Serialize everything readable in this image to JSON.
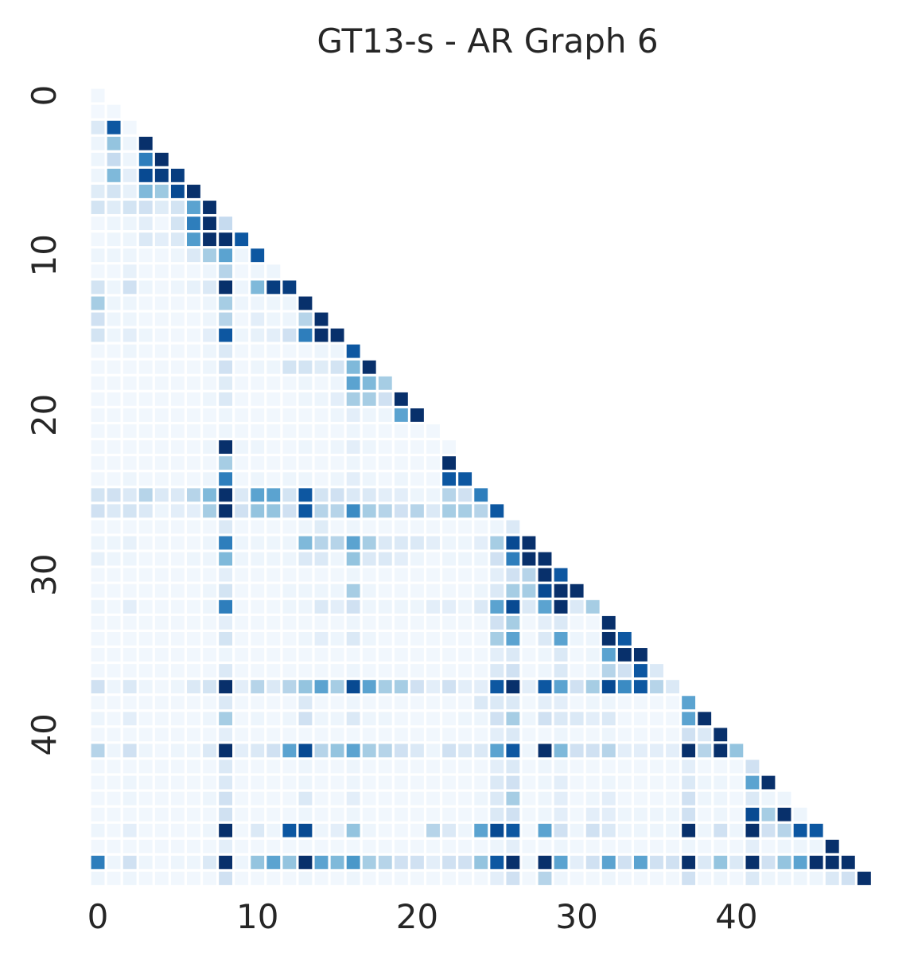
{
  "chart_data": {
    "type": "heatmap",
    "title": "GT13-s - AR Graph 6",
    "xlabel": "",
    "ylabel": "",
    "n": 49,
    "mask": "lower-triangle",
    "colormap": "Blues",
    "grid": false,
    "xticks": [
      0,
      10,
      20,
      30,
      40
    ],
    "yticks": [
      0,
      10,
      20,
      30,
      40
    ],
    "xtick_labels": [
      "0",
      "10",
      "20",
      "30",
      "40"
    ],
    "ytick_labels": [
      "0",
      "10",
      "20",
      "30",
      "40"
    ],
    "color_stops": [
      "#f7fbff",
      "#deebf7",
      "#c6dbef",
      "#9ecae1",
      "#6baed6",
      "#4292c6",
      "#2171b5",
      "#08519c",
      "#08306b"
    ],
    "rows": [
      [
        0.03
      ],
      [
        0.02,
        0.03
      ],
      [
        0.14,
        0.85,
        0.03
      ],
      [
        0.05,
        0.4,
        0.05,
        1.0
      ],
      [
        0.05,
        0.25,
        0.05,
        0.7,
        1.0
      ],
      [
        0.05,
        0.45,
        0.1,
        0.9,
        0.95,
        0.95
      ],
      [
        0.12,
        0.18,
        0.08,
        0.45,
        0.38,
        0.9,
        1.0
      ],
      [
        0.18,
        0.12,
        0.18,
        0.2,
        0.12,
        0.18,
        0.55,
        1.0
      ],
      [
        0.03,
        0.05,
        0.05,
        0.1,
        0.03,
        0.18,
        0.7,
        1.0,
        0.25
      ],
      [
        0.03,
        0.05,
        0.05,
        0.14,
        0.1,
        0.14,
        0.58,
        1.0,
        1.0,
        0.85
      ],
      [
        0.05,
        0.05,
        0.05,
        0.03,
        0.03,
        0.05,
        0.14,
        0.35,
        0.55,
        0.05,
        0.85
      ],
      [
        0.03,
        0.03,
        0.08,
        0.03,
        0.03,
        0.03,
        0.03,
        0.05,
        0.3,
        0.03,
        0.05,
        0.05
      ],
      [
        0.18,
        0.05,
        0.2,
        0.05,
        0.03,
        0.05,
        0.08,
        0.14,
        1.0,
        0.05,
        0.45,
        0.95,
        0.95
      ],
      [
        0.35,
        0.05,
        0.05,
        0.03,
        0.03,
        0.03,
        0.03,
        0.05,
        0.35,
        0.05,
        0.05,
        0.05,
        0.05,
        1.0
      ],
      [
        0.2,
        0.05,
        0.05,
        0.03,
        0.03,
        0.03,
        0.03,
        0.05,
        0.3,
        0.03,
        0.1,
        0.05,
        0.05,
        0.3,
        1.0
      ],
      [
        0.18,
        0.05,
        0.1,
        0.05,
        0.03,
        0.03,
        0.03,
        0.1,
        0.85,
        0.05,
        0.08,
        0.1,
        0.2,
        0.7,
        1.0,
        1.0
      ],
      [
        0.03,
        0.03,
        0.05,
        0.03,
        0.03,
        0.03,
        0.03,
        0.05,
        0.14,
        0.03,
        0.03,
        0.03,
        0.03,
        0.03,
        0.05,
        0.05,
        0.85
      ],
      [
        0.03,
        0.03,
        0.03,
        0.03,
        0.03,
        0.03,
        0.03,
        0.05,
        0.2,
        0.03,
        0.05,
        0.05,
        0.18,
        0.18,
        0.12,
        0.18,
        0.45,
        1.0
      ],
      [
        0.03,
        0.03,
        0.03,
        0.03,
        0.03,
        0.03,
        0.03,
        0.03,
        0.12,
        0.03,
        0.03,
        0.03,
        0.03,
        0.05,
        0.03,
        0.05,
        0.55,
        0.45,
        0.35
      ],
      [
        0.03,
        0.03,
        0.03,
        0.03,
        0.03,
        0.03,
        0.03,
        0.05,
        0.14,
        0.03,
        0.03,
        0.03,
        0.03,
        0.05,
        0.05,
        0.1,
        0.35,
        0.35,
        0.2,
        1.0
      ],
      [
        0.03,
        0.03,
        0.03,
        0.03,
        0.03,
        0.03,
        0.03,
        0.03,
        0.05,
        0.03,
        0.03,
        0.03,
        0.03,
        0.03,
        0.03,
        0.05,
        0.1,
        0.05,
        0.05,
        0.55,
        1.0
      ],
      [
        0.03,
        0.03,
        0.03,
        0.03,
        0.03,
        0.03,
        0.03,
        0.03,
        0.05,
        0.03,
        0.03,
        0.03,
        0.03,
        0.03,
        0.03,
        0.03,
        0.05,
        0.03,
        0.03,
        0.03,
        0.03,
        0.03
      ],
      [
        0.03,
        0.03,
        0.03,
        0.03,
        0.03,
        0.03,
        0.03,
        0.05,
        1.0,
        0.05,
        0.05,
        0.03,
        0.03,
        0.05,
        0.03,
        0.05,
        0.1,
        0.05,
        0.03,
        0.03,
        0.03,
        0.03,
        0.03
      ],
      [
        0.03,
        0.03,
        0.03,
        0.03,
        0.03,
        0.03,
        0.03,
        0.03,
        0.35,
        0.03,
        0.03,
        0.03,
        0.03,
        0.03,
        0.03,
        0.03,
        0.05,
        0.03,
        0.03,
        0.03,
        0.03,
        0.03,
        1.0
      ],
      [
        0.03,
        0.03,
        0.05,
        0.03,
        0.03,
        0.03,
        0.03,
        0.05,
        0.7,
        0.03,
        0.05,
        0.03,
        0.05,
        0.05,
        0.03,
        0.05,
        0.1,
        0.05,
        0.03,
        0.05,
        0.03,
        0.03,
        0.85,
        0.85
      ],
      [
        0.18,
        0.2,
        0.14,
        0.3,
        0.14,
        0.14,
        0.3,
        0.45,
        1.0,
        0.14,
        0.55,
        0.55,
        0.18,
        0.85,
        0.18,
        0.2,
        0.14,
        0.14,
        0.1,
        0.1,
        0.05,
        0.05,
        0.3,
        0.2,
        0.7
      ],
      [
        0.2,
        0.14,
        0.18,
        0.14,
        0.05,
        0.1,
        0.1,
        0.35,
        1.0,
        0.2,
        0.4,
        0.4,
        0.2,
        0.85,
        0.3,
        0.3,
        0.65,
        0.35,
        0.3,
        0.2,
        0.3,
        0.14,
        0.35,
        0.35,
        0.3,
        0.85
      ],
      [
        0.03,
        0.03,
        0.03,
        0.03,
        0.03,
        0.03,
        0.03,
        0.03,
        0.14,
        0.03,
        0.03,
        0.03,
        0.03,
        0.05,
        0.12,
        0.03,
        0.05,
        0.03,
        0.03,
        0.03,
        0.03,
        0.03,
        0.03,
        0.03,
        0.03,
        0.05,
        0.14
      ],
      [
        0.05,
        0.05,
        0.08,
        0.03,
        0.03,
        0.03,
        0.03,
        0.05,
        0.7,
        0.05,
        0.05,
        0.05,
        0.05,
        0.45,
        0.3,
        0.3,
        0.55,
        0.35,
        0.14,
        0.14,
        0.14,
        0.1,
        0.05,
        0.05,
        0.1,
        0.35,
        0.9,
        1.0
      ],
      [
        0.08,
        0.05,
        0.05,
        0.03,
        0.03,
        0.03,
        0.05,
        0.05,
        0.45,
        0.05,
        0.05,
        0.05,
        0.05,
        0.14,
        0.14,
        0.05,
        0.4,
        0.14,
        0.14,
        0.1,
        0.05,
        0.03,
        0.05,
        0.05,
        0.05,
        0.2,
        0.7,
        1.0,
        1.0
      ],
      [
        0.03,
        0.03,
        0.03,
        0.03,
        0.03,
        0.03,
        0.03,
        0.03,
        0.1,
        0.03,
        0.03,
        0.03,
        0.03,
        0.03,
        0.03,
        0.03,
        0.05,
        0.03,
        0.03,
        0.03,
        0.03,
        0.03,
        0.03,
        0.03,
        0.03,
        0.1,
        0.2,
        0.3,
        1.0,
        0.85
      ],
      [
        0.03,
        0.03,
        0.03,
        0.03,
        0.03,
        0.03,
        0.03,
        0.05,
        0.18,
        0.03,
        0.03,
        0.03,
        0.05,
        0.05,
        0.05,
        0.05,
        0.35,
        0.05,
        0.03,
        0.03,
        0.03,
        0.03,
        0.03,
        0.03,
        0.05,
        0.14,
        0.35,
        0.35,
        0.9,
        1.0,
        1.0
      ],
      [
        0.05,
        0.03,
        0.1,
        0.03,
        0.03,
        0.03,
        0.03,
        0.05,
        0.7,
        0.03,
        0.03,
        0.03,
        0.05,
        0.05,
        0.14,
        0.1,
        0.2,
        0.05,
        0.05,
        0.05,
        0.05,
        0.1,
        0.1,
        0.05,
        0.14,
        0.55,
        0.9,
        0.14,
        0.55,
        1.0,
        0.14,
        0.35
      ],
      [
        0.03,
        0.03,
        0.03,
        0.03,
        0.03,
        0.03,
        0.03,
        0.03,
        0.1,
        0.03,
        0.03,
        0.03,
        0.03,
        0.03,
        0.03,
        0.03,
        0.05,
        0.03,
        0.03,
        0.03,
        0.03,
        0.03,
        0.03,
        0.03,
        0.03,
        0.2,
        0.35,
        0.03,
        0.1,
        0.14,
        0.03,
        0.03,
        1.0
      ],
      [
        0.03,
        0.03,
        0.03,
        0.03,
        0.03,
        0.03,
        0.03,
        0.03,
        0.18,
        0.03,
        0.03,
        0.03,
        0.03,
        0.05,
        0.1,
        0.05,
        0.14,
        0.05,
        0.03,
        0.03,
        0.03,
        0.03,
        0.03,
        0.03,
        0.03,
        0.35,
        0.55,
        0.03,
        0.14,
        0.55,
        0.05,
        0.05,
        1.0,
        0.85
      ],
      [
        0.03,
        0.03,
        0.03,
        0.03,
        0.03,
        0.03,
        0.03,
        0.03,
        0.05,
        0.03,
        0.03,
        0.03,
        0.03,
        0.03,
        0.03,
        0.03,
        0.03,
        0.03,
        0.03,
        0.03,
        0.03,
        0.03,
        0.03,
        0.03,
        0.03,
        0.1,
        0.14,
        0.03,
        0.05,
        0.14,
        0.03,
        0.05,
        0.55,
        1.0,
        1.0
      ],
      [
        0.03,
        0.03,
        0.03,
        0.03,
        0.03,
        0.03,
        0.03,
        0.03,
        0.14,
        0.03,
        0.03,
        0.03,
        0.03,
        0.03,
        0.03,
        0.03,
        0.05,
        0.03,
        0.03,
        0.03,
        0.03,
        0.03,
        0.03,
        0.03,
        0.03,
        0.14,
        0.2,
        0.03,
        0.05,
        0.14,
        0.03,
        0.05,
        0.3,
        0.2,
        0.85,
        0.14
      ],
      [
        0.2,
        0.05,
        0.14,
        0.05,
        0.03,
        0.05,
        0.14,
        0.18,
        1.0,
        0.1,
        0.3,
        0.14,
        0.3,
        0.4,
        0.55,
        0.35,
        0.9,
        0.55,
        0.35,
        0.35,
        0.2,
        0.1,
        0.2,
        0.1,
        0.1,
        0.85,
        1.0,
        0.1,
        0.85,
        0.55,
        0.2,
        0.35,
        0.9,
        0.65,
        0.85,
        0.3,
        0.14
      ],
      [
        0.03,
        0.03,
        0.03,
        0.03,
        0.03,
        0.03,
        0.03,
        0.03,
        0.14,
        0.03,
        0.03,
        0.03,
        0.03,
        0.14,
        0.03,
        0.03,
        0.05,
        0.03,
        0.03,
        0.03,
        0.03,
        0.03,
        0.03,
        0.03,
        0.14,
        0.14,
        0.14,
        0.03,
        0.1,
        0.1,
        0.03,
        0.05,
        0.05,
        0.03,
        0.03,
        0.03,
        0.03,
        0.55
      ],
      [
        0.05,
        0.03,
        0.1,
        0.03,
        0.03,
        0.03,
        0.03,
        0.05,
        0.35,
        0.03,
        0.05,
        0.03,
        0.05,
        0.2,
        0.05,
        0.05,
        0.14,
        0.05,
        0.05,
        0.03,
        0.03,
        0.03,
        0.03,
        0.05,
        0.05,
        0.2,
        0.35,
        0.05,
        0.2,
        0.14,
        0.14,
        0.1,
        0.14,
        0.03,
        0.03,
        0.03,
        0.03,
        0.55,
        1.0
      ],
      [
        0.03,
        0.03,
        0.03,
        0.03,
        0.03,
        0.03,
        0.03,
        0.03,
        0.1,
        0.03,
        0.03,
        0.03,
        0.03,
        0.03,
        0.03,
        0.03,
        0.03,
        0.03,
        0.03,
        0.03,
        0.03,
        0.03,
        0.03,
        0.03,
        0.03,
        0.1,
        0.14,
        0.03,
        0.03,
        0.05,
        0.03,
        0.03,
        0.05,
        0.03,
        0.03,
        0.03,
        0.03,
        0.2,
        0.14,
        1.0
      ],
      [
        0.3,
        0.05,
        0.2,
        0.05,
        0.03,
        0.05,
        0.05,
        0.14,
        1.0,
        0.1,
        0.14,
        0.2,
        0.55,
        0.9,
        0.3,
        0.4,
        0.55,
        0.35,
        0.3,
        0.2,
        0.14,
        0.05,
        0.2,
        0.14,
        0.14,
        0.55,
        0.85,
        0.05,
        1.0,
        0.45,
        0.2,
        0.2,
        0.3,
        0.1,
        0.1,
        0.1,
        0.1,
        1.0,
        0.3,
        1.0,
        0.4
      ],
      [
        0.03,
        0.03,
        0.03,
        0.03,
        0.03,
        0.03,
        0.03,
        0.03,
        0.14,
        0.03,
        0.03,
        0.03,
        0.03,
        0.05,
        0.03,
        0.03,
        0.05,
        0.03,
        0.03,
        0.03,
        0.03,
        0.03,
        0.03,
        0.03,
        0.03,
        0.1,
        0.14,
        0.03,
        0.05,
        0.05,
        0.03,
        0.03,
        0.03,
        0.03,
        0.03,
        0.03,
        0.03,
        0.1,
        0.03,
        0.03,
        0.03,
        0.2
      ],
      [
        0.03,
        0.03,
        0.05,
        0.03,
        0.03,
        0.03,
        0.03,
        0.03,
        0.14,
        0.03,
        0.03,
        0.03,
        0.03,
        0.05,
        0.03,
        0.03,
        0.05,
        0.03,
        0.03,
        0.03,
        0.03,
        0.03,
        0.03,
        0.03,
        0.03,
        0.14,
        0.2,
        0.03,
        0.05,
        0.1,
        0.03,
        0.03,
        0.05,
        0.03,
        0.03,
        0.03,
        0.03,
        0.14,
        0.05,
        0.05,
        0.03,
        0.55,
        1.0
      ],
      [
        0.03,
        0.03,
        0.05,
        0.03,
        0.03,
        0.03,
        0.03,
        0.05,
        0.2,
        0.03,
        0.03,
        0.03,
        0.03,
        0.14,
        0.03,
        0.03,
        0.1,
        0.03,
        0.03,
        0.03,
        0.03,
        0.03,
        0.03,
        0.03,
        0.05,
        0.14,
        0.35,
        0.03,
        0.05,
        0.1,
        0.03,
        0.05,
        0.1,
        0.03,
        0.03,
        0.03,
        0.03,
        0.2,
        0.05,
        0.05,
        0.03,
        0.14,
        0.05,
        0.05
      ],
      [
        0.03,
        0.03,
        0.03,
        0.03,
        0.03,
        0.03,
        0.03,
        0.03,
        0.2,
        0.03,
        0.03,
        0.03,
        0.03,
        0.05,
        0.03,
        0.03,
        0.05,
        0.03,
        0.03,
        0.03,
        0.03,
        0.03,
        0.03,
        0.03,
        0.03,
        0.14,
        0.2,
        0.03,
        0.05,
        0.1,
        0.03,
        0.1,
        0.1,
        0.05,
        0.05,
        0.05,
        0.05,
        0.2,
        0.03,
        0.05,
        0.03,
        0.9,
        0.35,
        1.0,
        0.05
      ],
      [
        0.05,
        0.03,
        0.1,
        0.03,
        0.03,
        0.03,
        0.03,
        0.05,
        1.0,
        0.03,
        0.14,
        0.05,
        0.85,
        0.9,
        0.05,
        0.1,
        0.4,
        0.05,
        0.03,
        0.03,
        0.03,
        0.3,
        0.14,
        0.05,
        0.55,
        0.9,
        0.85,
        0.03,
        0.55,
        0.2,
        0.05,
        0.2,
        0.14,
        0.05,
        0.05,
        0.05,
        0.05,
        1.0,
        0.05,
        0.2,
        0.05,
        1.0,
        0.2,
        0.3,
        0.85,
        0.85
      ],
      [
        0.03,
        0.03,
        0.03,
        0.03,
        0.03,
        0.03,
        0.03,
        0.03,
        0.1,
        0.03,
        0.03,
        0.03,
        0.03,
        0.03,
        0.03,
        0.03,
        0.03,
        0.03,
        0.03,
        0.03,
        0.03,
        0.03,
        0.03,
        0.03,
        0.03,
        0.05,
        0.1,
        0.03,
        0.03,
        0.05,
        0.03,
        0.03,
        0.03,
        0.03,
        0.03,
        0.03,
        0.03,
        0.05,
        0.03,
        0.03,
        0.03,
        0.1,
        0.03,
        0.05,
        0.05,
        0.05,
        1.0
      ],
      [
        0.7,
        0.05,
        0.2,
        0.05,
        0.03,
        0.05,
        0.05,
        0.14,
        1.0,
        0.05,
        0.4,
        0.55,
        0.4,
        1.0,
        0.55,
        0.45,
        0.6,
        0.35,
        0.3,
        0.2,
        0.2,
        0.1,
        0.2,
        0.2,
        0.4,
        0.85,
        1.0,
        0.05,
        1.0,
        0.55,
        0.1,
        0.2,
        0.55,
        0.2,
        0.55,
        0.2,
        0.2,
        1.0,
        0.14,
        0.4,
        0.14,
        1.0,
        0.2,
        0.4,
        0.55,
        1.0,
        1.0,
        1.0
      ],
      [
        0.05,
        0.03,
        0.05,
        0.03,
        0.03,
        0.03,
        0.03,
        0.03,
        0.2,
        0.03,
        0.03,
        0.03,
        0.03,
        0.05,
        0.03,
        0.03,
        0.05,
        0.03,
        0.03,
        0.03,
        0.03,
        0.03,
        0.03,
        0.03,
        0.03,
        0.1,
        0.2,
        0.03,
        0.3,
        0.05,
        0.03,
        0.03,
        0.05,
        0.03,
        0.03,
        0.03,
        0.03,
        0.2,
        0.03,
        0.05,
        0.03,
        0.14,
        0.05,
        0.05,
        0.05,
        0.05,
        0.14,
        0.2,
        1.0
      ]
    ]
  }
}
